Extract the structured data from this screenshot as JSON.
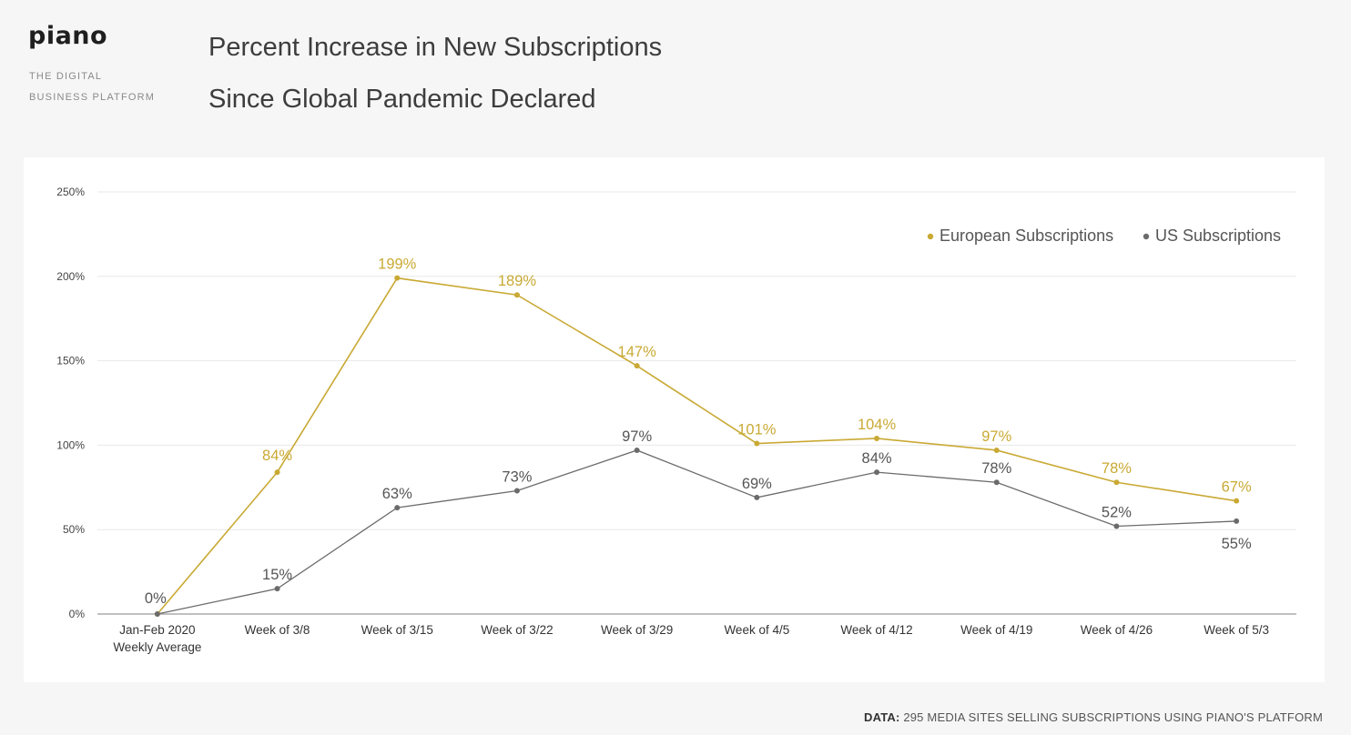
{
  "brand": {
    "name": "piano",
    "tagline_line1": "THE DIGITAL",
    "tagline_line2": "BUSINESS PLATFORM"
  },
  "title_line1": "Percent Increase in New Subscriptions",
  "title_line2": "Since Global Pandemic Declared",
  "footer": {
    "label": "DATA:",
    "text": "295 MEDIA SITES SELLING SUBSCRIPTIONS USING PIANO'S PLATFORM"
  },
  "chart_data": {
    "type": "line",
    "categories": [
      [
        "Jan-Feb 2020",
        "Weekly Average"
      ],
      [
        "Week of 3/8"
      ],
      [
        "Week of 3/15"
      ],
      [
        "Week of 3/22"
      ],
      [
        "Week of 3/29"
      ],
      [
        "Week of 4/5"
      ],
      [
        "Week of 4/12"
      ],
      [
        "Week of 4/19"
      ],
      [
        "Week of 4/26"
      ],
      [
        "Week of 5/3"
      ]
    ],
    "series": [
      {
        "name": "European Subscriptions",
        "color": "#c9a934",
        "values": [
          0,
          84,
          199,
          189,
          147,
          101,
          104,
          97,
          78,
          67
        ],
        "labels": [
          "",
          "84%",
          "199%",
          "189%",
          "147%",
          "101%",
          "104%",
          "97%",
          "78%",
          "67%"
        ]
      },
      {
        "name": "US Subscriptions",
        "color": "#6b6b6b",
        "values": [
          0,
          15,
          63,
          73,
          97,
          69,
          84,
          78,
          52,
          55
        ],
        "labels": [
          "0%",
          "15%",
          "63%",
          "73%",
          "97%",
          "69%",
          "84%",
          "78%",
          "52%",
          "55%"
        ]
      }
    ],
    "y_ticks": [
      "0%",
      "50%",
      "100%",
      "150%",
      "200%",
      "250%"
    ],
    "y_tick_values": [
      0,
      50,
      100,
      150,
      200,
      250
    ],
    "ylim": [
      0,
      250
    ],
    "grid": true,
    "legend_position": "top-right"
  }
}
